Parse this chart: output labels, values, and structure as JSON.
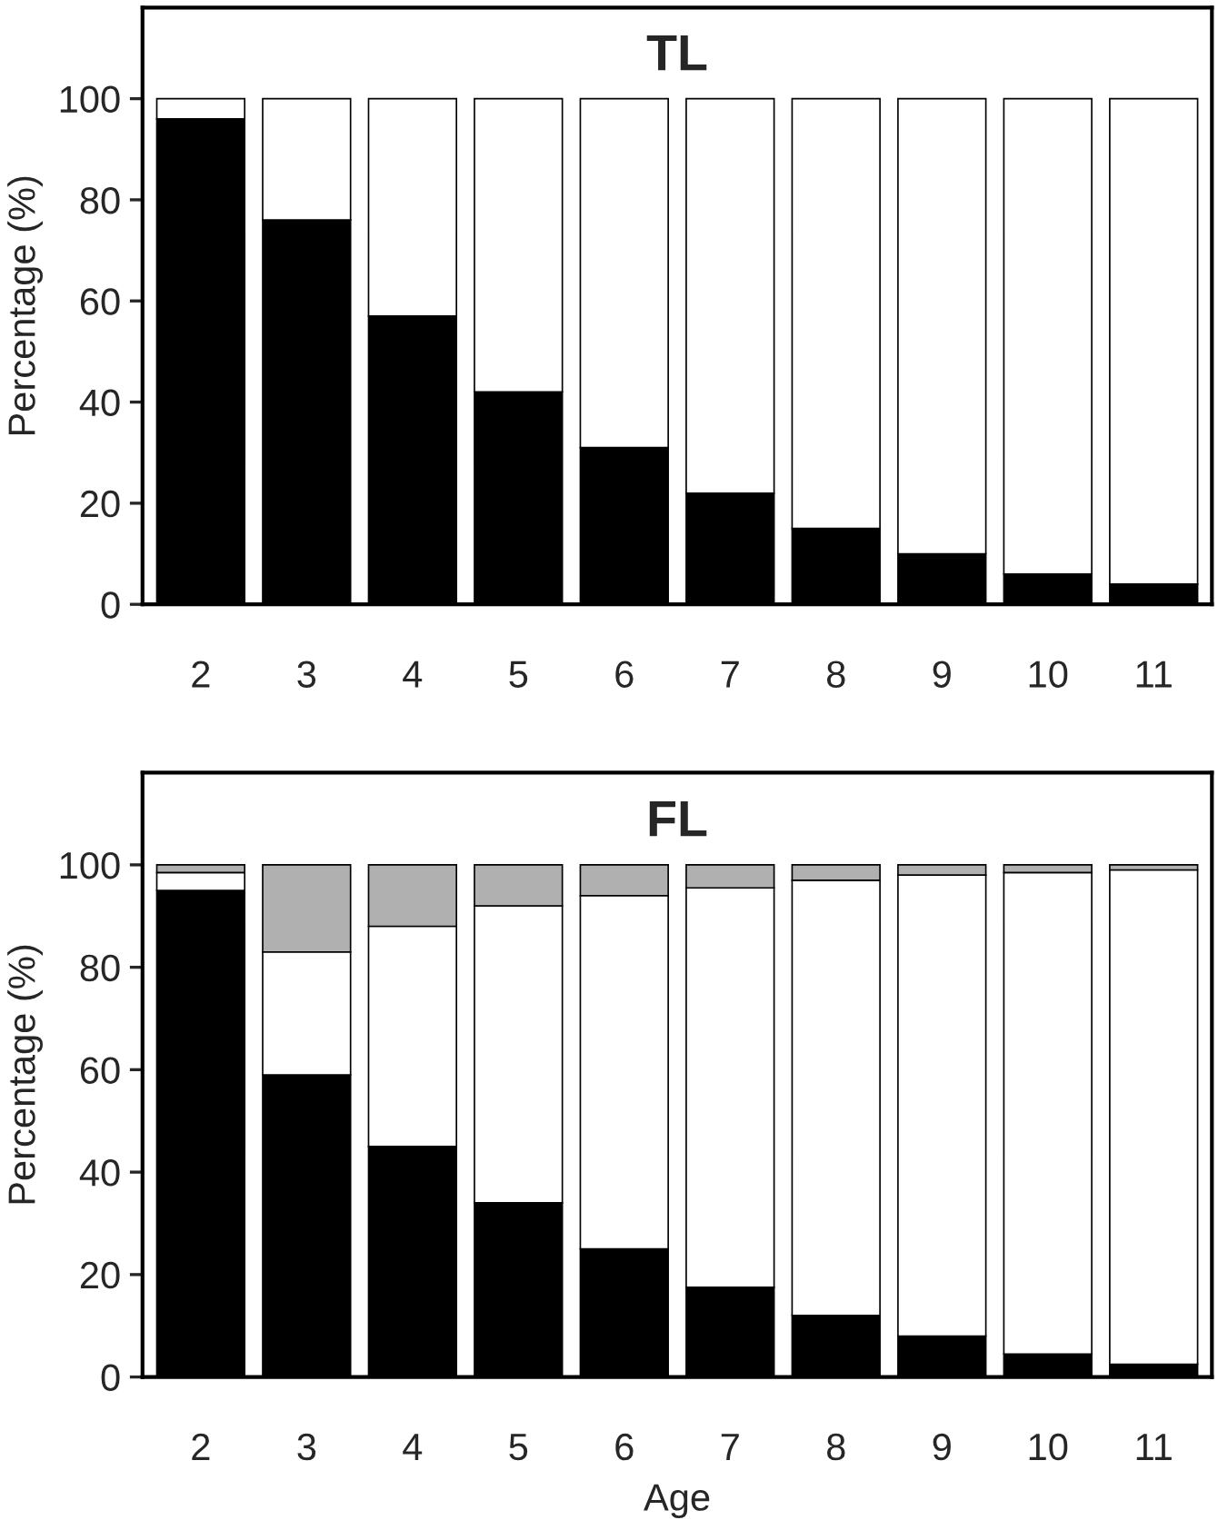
{
  "chart_data": [
    {
      "type": "bar",
      "title": "TL",
      "ylabel": "Percentage (%)",
      "stacked": true,
      "categories": [
        "2",
        "3",
        "4",
        "5",
        "6",
        "7",
        "8",
        "9",
        "10",
        "11"
      ],
      "ylim": [
        0,
        118
      ],
      "yticks": [
        0,
        20,
        40,
        60,
        80,
        100
      ],
      "series": [
        {
          "color": "#000000",
          "values": [
            96,
            76,
            57,
            42,
            31,
            22,
            15,
            10,
            6,
            4
          ]
        },
        {
          "color": "#ffffff",
          "values": [
            4,
            24,
            43,
            58,
            69,
            78,
            85,
            90,
            94,
            96
          ]
        }
      ]
    },
    {
      "type": "bar",
      "title": "FL",
      "xlabel": "Age",
      "ylabel": "Percentage (%)",
      "stacked": true,
      "categories": [
        "2",
        "3",
        "4",
        "5",
        "6",
        "7",
        "8",
        "9",
        "10",
        "11"
      ],
      "ylim": [
        0,
        118
      ],
      "yticks": [
        0,
        20,
        40,
        60,
        80,
        100
      ],
      "series": [
        {
          "color": "#000000",
          "values": [
            95,
            59,
            45,
            34,
            25,
            17.5,
            12,
            8,
            4.5,
            2.5
          ]
        },
        {
          "color": "#ffffff",
          "values": [
            3.5,
            24,
            43,
            58,
            69,
            78,
            85,
            90,
            94,
            96.5
          ]
        },
        {
          "color": "#b0b0b0",
          "values": [
            1.5,
            17,
            12,
            8,
            6,
            4.5,
            3,
            2,
            1.5,
            1
          ]
        }
      ]
    }
  ]
}
